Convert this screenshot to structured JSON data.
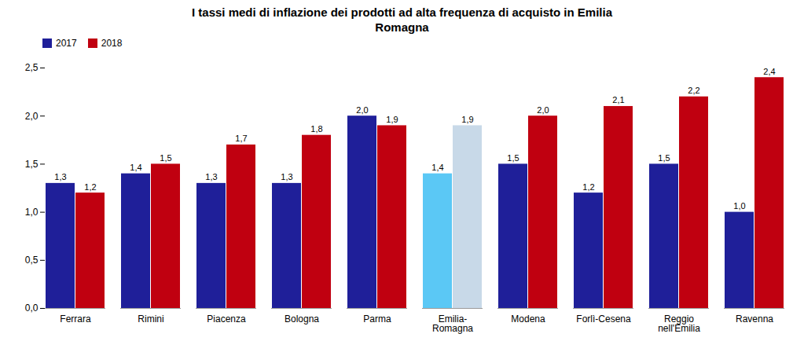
{
  "chart_data": {
    "type": "bar",
    "title": "I tassi medi di inflazione dei prodotti ad alta frequenza di acquisto in Emilia\nRomagna",
    "categories": [
      "Ferrara",
      "Rimini",
      "Piacenza",
      "Bologna",
      "Parma",
      "Emilia-\nRomagna",
      "Modena",
      "Forlì-Cesena",
      "Reggio\nnell'Emilia",
      "Ravenna"
    ],
    "series": [
      {
        "name": "2017",
        "color": "#1f1f99",
        "colors": [
          "#1f1f99",
          "#1f1f99",
          "#1f1f99",
          "#1f1f99",
          "#1f1f99",
          "#5bc8f5",
          "#1f1f99",
          "#1f1f99",
          "#1f1f99",
          "#1f1f99"
        ],
        "values": [
          1.3,
          1.4,
          1.3,
          1.3,
          2.0,
          1.4,
          1.5,
          1.2,
          1.5,
          1.0
        ],
        "value_labels": [
          "1,3",
          "1,4",
          "1,3",
          "1,3",
          "2,0",
          "1,4",
          "1,5",
          "1,2",
          "1,5",
          "1,0"
        ]
      },
      {
        "name": "2018",
        "color": "#c00010",
        "colors": [
          "#c00010",
          "#c00010",
          "#c00010",
          "#c00010",
          "#c00010",
          "#c8d9e8",
          "#c00010",
          "#c00010",
          "#c00010",
          "#c00010"
        ],
        "values": [
          1.2,
          1.5,
          1.7,
          1.8,
          1.9,
          1.9,
          2.0,
          2.1,
          2.2,
          2.4
        ],
        "value_labels": [
          "1,2",
          "1,5",
          "1,7",
          "1,8",
          "1,9",
          "1,9",
          "2,0",
          "2,1",
          "2,2",
          "2,4"
        ]
      }
    ],
    "ylim": [
      0,
      2.5
    ],
    "yticks": [
      {
        "value": 0.0,
        "label": "0,0"
      },
      {
        "value": 0.5,
        "label": "0,5"
      },
      {
        "value": 1.0,
        "label": "1,0"
      },
      {
        "value": 1.5,
        "label": "1,5"
      },
      {
        "value": 2.0,
        "label": "2,0"
      },
      {
        "value": 2.5,
        "label": "2,5"
      }
    ],
    "legend": "upper left",
    "data_labels": true,
    "grid": false
  }
}
